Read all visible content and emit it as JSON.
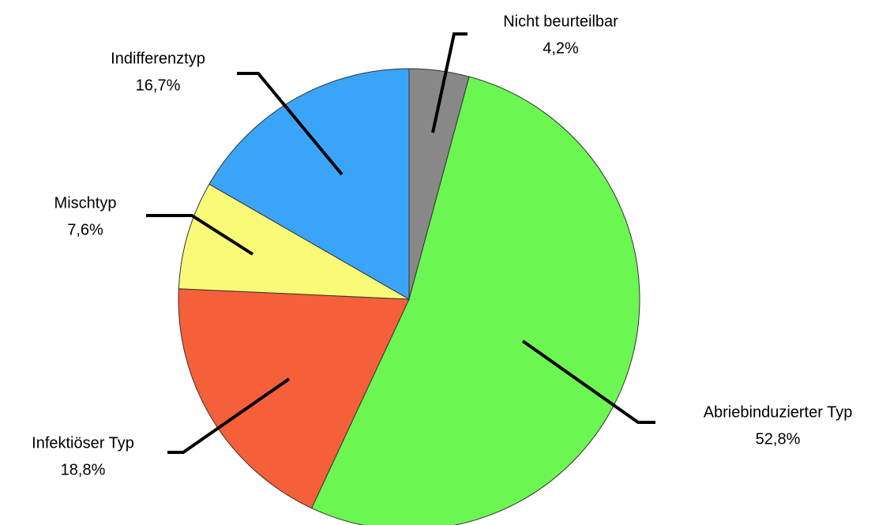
{
  "chart_data": {
    "type": "pie",
    "categories": [
      "Nicht beurteilbar",
      "Abriebinduzierter Typ",
      "Infektiöser Typ",
      "Mischtyp",
      "Indifferenztyp"
    ],
    "values": [
      4.2,
      52.8,
      18.8,
      7.6,
      16.7
    ],
    "value_labels": [
      "4,2%",
      "52,8%",
      "18,8%",
      "7,6%",
      "16,7%"
    ],
    "colors": [
      "#888888",
      "#6cf652",
      "#f5603a",
      "#f8fa78",
      "#3aa5f8"
    ]
  }
}
